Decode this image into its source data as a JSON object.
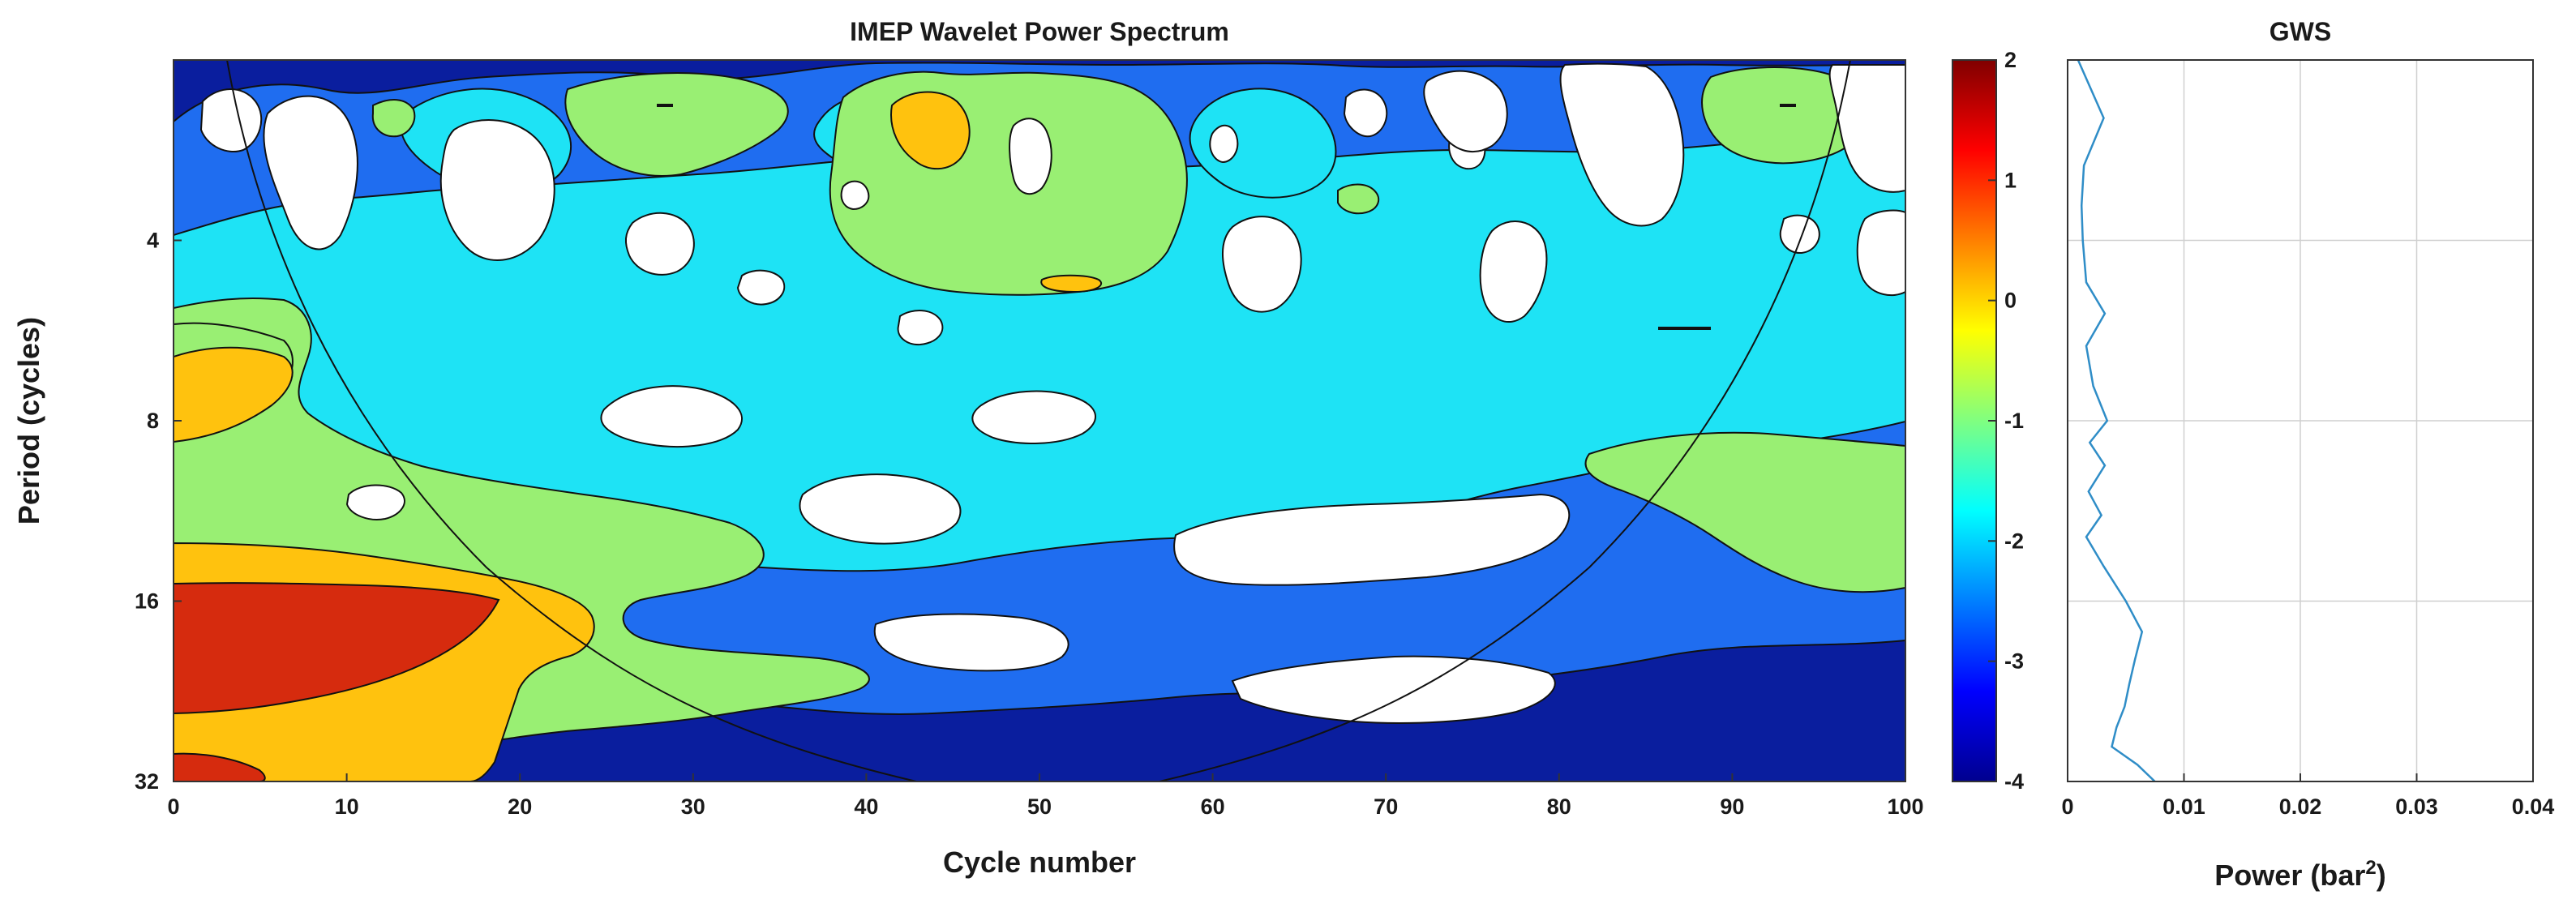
{
  "chart_data": [
    {
      "type": "heatmap",
      "title": "IMEP Wavelet Power Spectrum",
      "xlabel": "Cycle number",
      "ylabel": "Period (cycles)",
      "xlim": [
        0,
        100
      ],
      "xticks": [
        0,
        10,
        20,
        30,
        40,
        50,
        60,
        70,
        80,
        90,
        100
      ],
      "ylim": [
        2,
        32
      ],
      "yscale": "log2",
      "yreversed": true,
      "yticks": [
        4,
        8,
        16,
        32
      ],
      "cone_of_influence": true,
      "colormap": "jet",
      "filled_contours": [
        {
          "level": 1.5,
          "color": "#d62b0e",
          "region": "period 16–26 at cycles 0–19; period ~32 at cycles 0–10"
        },
        {
          "level": 0.5,
          "color": "#ffc20e",
          "region": "period 6–9 at cycles 0–8; period 12–32 at cycles 0–27; small patch period ~2.5 near cycle 44"
        },
        {
          "level": -0.5,
          "color": "#99ef73",
          "region": "band period 5–32 at cycles 0–35; tops around cycles 25–50 and 88–96; right edge period 11–16"
        },
        {
          "level": -1.5,
          "color": "#1ee3f5",
          "region": "broad background across periods 3–20"
        },
        {
          "level": -2.5,
          "color": "#1f6df0",
          "region": "lower energy band periods 2–28"
        },
        {
          "level": -3.5,
          "color": "#0a1e9e",
          "region": "lowest band around white holes and lower right"
        }
      ],
      "colorbar": {
        "min": -4,
        "max": 2,
        "ticks": [
          2,
          1,
          0,
          -1,
          -2,
          -3,
          -4
        ]
      }
    },
    {
      "type": "line",
      "title": "GWS",
      "xlabel": "Power (bar",
      "xlabel_sup": "2",
      "xlabel_end": ")",
      "xlim": [
        0,
        0.04
      ],
      "xticks": [
        "0",
        "0.01",
        "0.02",
        "0.03",
        "0.04"
      ],
      "xtick_values": [
        0,
        0.01,
        0.02,
        0.03,
        0.04
      ],
      "ylim": [
        2,
        32
      ],
      "yscale": "log2",
      "yreversed": true,
      "grid": true,
      "color": "#2f8dc7",
      "period": [
        2.0,
        2.5,
        3.0,
        3.5,
        4.0,
        4.7,
        5.3,
        6.0,
        7.0,
        8.0,
        8.7,
        9.5,
        10.5,
        11.5,
        12.5,
        14.0,
        16.0,
        18.0,
        20.0,
        22.0,
        24.0,
        26.0,
        28.0,
        30.0,
        32.0
      ],
      "power": [
        0.0009,
        0.0031,
        0.0014,
        0.0012,
        0.0013,
        0.0016,
        0.0032,
        0.0016,
        0.0022,
        0.0034,
        0.0019,
        0.0032,
        0.0018,
        0.0029,
        0.0016,
        0.0031,
        0.005,
        0.0064,
        0.0058,
        0.0053,
        0.0049,
        0.0042,
        0.0038,
        0.006,
        0.0075
      ]
    }
  ]
}
